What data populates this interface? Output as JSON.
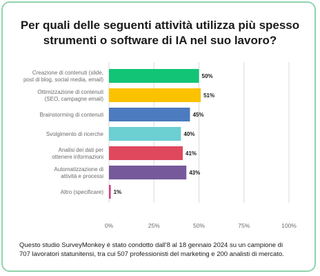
{
  "title": {
    "line1": "Per quali delle seguenti attività utilizza più spesso",
    "line2": "strumenti o software di IA nel suo lavoro?"
  },
  "chart_data": {
    "type": "bar",
    "orientation": "horizontal",
    "categories": [
      [
        "Creazione di contenuti (slide,",
        "post di blog, social media, email)"
      ],
      [
        "Ottimizzazione di contenuti",
        "(SEO, campagne email)"
      ],
      [
        "Brainstorming di contenuti"
      ],
      [
        "Svolgimento di ricerche"
      ],
      [
        "Analisi dei dati per",
        "ottenere informazioni"
      ],
      [
        "Automatizzazione di",
        "attività e processi"
      ],
      [
        "Altro (specificare)"
      ]
    ],
    "values": [
      50,
      51,
      45,
      40,
      41,
      43,
      1
    ],
    "data_labels": [
      "50%",
      "51%",
      "45%",
      "40%",
      "41%",
      "43%",
      "1%"
    ],
    "colors": [
      "#12c476",
      "#fcc200",
      "#4c7bbf",
      "#6ccfd2",
      "#e0485d",
      "#76599a",
      "#d13f83"
    ],
    "xlim": [
      0,
      100
    ],
    "xticks": [
      0,
      25,
      50,
      75,
      100
    ],
    "xtick_labels": [
      "0%",
      "25%",
      "50%",
      "75%",
      "100%"
    ],
    "grid": true
  },
  "footnote": {
    "line1": "Questo studio SurveyMonkey è stato condotto dall'8 al 18 gennaio 2024 su un campione di",
    "line2": "707 lavoratori statunitensi, tra cui 507 professionisti del marketing e 200 analisti di mercato."
  },
  "colors": {
    "border": "#8fd4ad",
    "grid": "#d9d9d9",
    "text": "#1a1a1a",
    "muted": "#6b6b6b"
  }
}
